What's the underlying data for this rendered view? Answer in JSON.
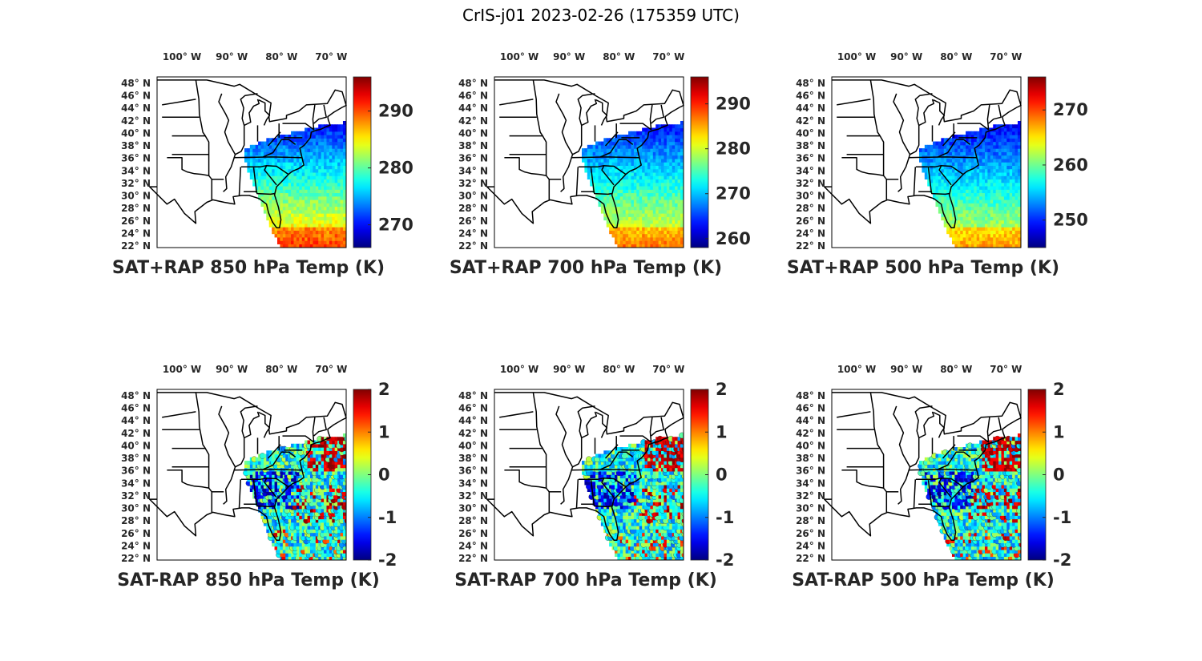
{
  "figure": {
    "title": "CrIS-j01 2023-02-26 (175359 UTC)"
  },
  "lon_labels": [
    "100° W",
    "90° W",
    "80° W",
    "70° W"
  ],
  "lat_labels": [
    "48° N",
    "46° N",
    "44° N",
    "42° N",
    "40° N",
    "38° N",
    "36° N",
    "34° N",
    "32° N",
    "30° N",
    "28° N",
    "26° N",
    "24° N",
    "22° N"
  ],
  "colormap": "jet",
  "panels": [
    {
      "id": "p1",
      "title": "SAT+RAP 850 hPa Temp (K)",
      "kind": "total",
      "clim": [
        266,
        296
      ],
      "ticks": [
        "290",
        "280",
        "270"
      ],
      "tick_values": [
        290,
        280,
        270
      ],
      "low_tint": 0.35,
      "high_tint": 0.72
    },
    {
      "id": "p2",
      "title": "SAT+RAP 700 hPa Temp (K)",
      "kind": "total",
      "clim": [
        258,
        296
      ],
      "ticks": [
        "290",
        "280",
        "270",
        "260"
      ],
      "tick_values": [
        290,
        280,
        270,
        260
      ],
      "low_tint": 0.33,
      "high_tint": 0.66
    },
    {
      "id": "p3",
      "title": "SAT+RAP 500 hPa Temp (K)",
      "kind": "total",
      "clim": [
        245,
        276
      ],
      "ticks": [
        "270",
        "260",
        "250"
      ],
      "tick_values": [
        270,
        260,
        250
      ],
      "low_tint": 0.3,
      "high_tint": 0.62
    },
    {
      "id": "p4",
      "title": "SAT-RAP 850 hPa Temp (K)",
      "kind": "diff",
      "clim": [
        -2,
        2
      ],
      "ticks": [
        "2",
        "1",
        "0",
        "-1",
        "-2"
      ],
      "tick_values": [
        2,
        1,
        0,
        -1,
        -2
      ]
    },
    {
      "id": "p5",
      "title": "SAT-RAP 700 hPa Temp (K)",
      "kind": "diff",
      "clim": [
        -2,
        2
      ],
      "ticks": [
        "2",
        "1",
        "0",
        "-1",
        "-2"
      ],
      "tick_values": [
        2,
        1,
        0,
        -1,
        -2
      ]
    },
    {
      "id": "p6",
      "title": "SAT-RAP 500 hPa Temp (K)",
      "kind": "diff",
      "clim": [
        -2,
        2
      ],
      "ticks": [
        "2",
        "1",
        "0",
        "-1",
        "-2"
      ],
      "tick_values": [
        2,
        1,
        0,
        -1,
        -2
      ]
    }
  ]
}
